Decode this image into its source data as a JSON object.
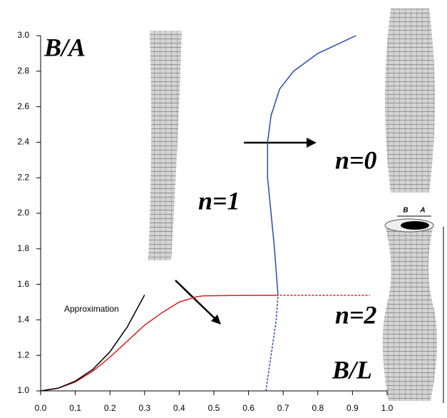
{
  "chart_data": {
    "type": "line",
    "ylabel": "B/A",
    "xlabel": "B/L",
    "xlim": [
      0,
      1
    ],
    "ylim": [
      1,
      3
    ],
    "xticks": [
      {
        "value": 0,
        "label": "0.0"
      },
      0.1,
      0.2,
      0.3,
      0.4,
      0.5,
      0.6,
      0.7,
      0.8,
      0.9,
      {
        "value": 1,
        "label": "1.0"
      }
    ],
    "yticks": [
      {
        "value": 1,
        "label": "1.0"
      },
      1.2,
      1.4,
      1.6,
      1.8,
      {
        "value": 2,
        "label": "2.0"
      },
      2.2,
      2.4,
      2.6,
      2.8,
      {
        "value": 3,
        "label": "3.0"
      }
    ],
    "series": [
      {
        "color": "#d62020",
        "dash": false,
        "x": [
          0,
          0.05,
          0.1,
          0.15,
          0.2,
          0.25,
          0.3,
          0.35,
          0.4,
          0.45,
          0.47,
          0.55,
          0.68
        ],
        "values": [
          1.0,
          1.015,
          1.05,
          1.11,
          1.19,
          1.28,
          1.37,
          1.44,
          1.5,
          1.53,
          1.535,
          1.537,
          1.538
        ]
      },
      {
        "color": "#d62020",
        "dash": true,
        "x": [
          0.68,
          0.8,
          0.95
        ],
        "values": [
          1.538,
          1.538,
          1.538
        ]
      },
      {
        "name": "Approximation",
        "color": "#000000",
        "dash": false,
        "x": [
          0,
          0.05,
          0.1,
          0.15,
          0.2,
          0.25,
          0.3
        ],
        "values": [
          1.0,
          1.015,
          1.055,
          1.12,
          1.22,
          1.36,
          1.54
        ]
      },
      {
        "color": "#2a4aa8",
        "dash": false,
        "x": [
          0.685,
          0.675,
          0.665,
          0.655,
          0.655,
          0.665,
          0.69,
          0.73,
          0.8,
          0.91
        ],
        "values": [
          1.54,
          1.8,
          2.0,
          2.2,
          2.4,
          2.55,
          2.7,
          2.8,
          2.9,
          3.0
        ]
      },
      {
        "color": "#2a4aa8",
        "dash": true,
        "x": [
          0.65,
          0.665,
          0.68,
          0.685
        ],
        "values": [
          1.0,
          1.2,
          1.4,
          1.54
        ]
      }
    ],
    "annotations": [
      "n=1",
      "n=0",
      "n=2"
    ],
    "dimension_labels": [
      "B",
      "A"
    ]
  }
}
